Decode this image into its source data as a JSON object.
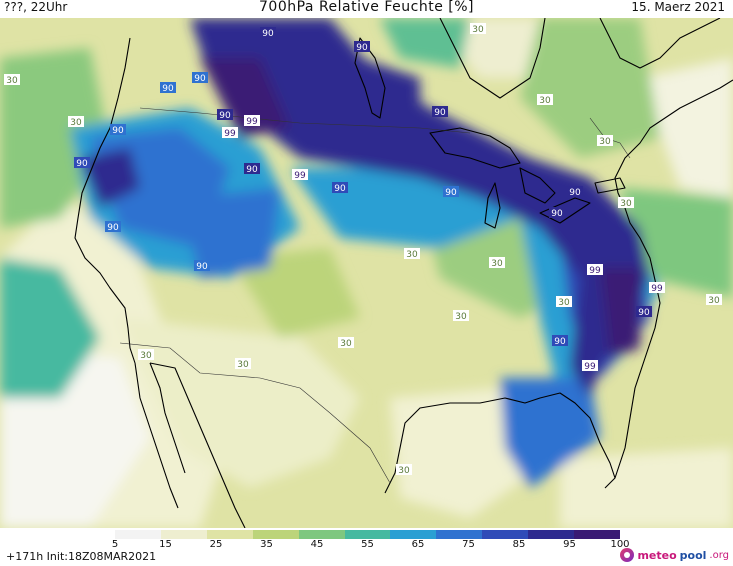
{
  "header": {
    "left": "???, 22Uhr",
    "title": "700hPa Relative Feuchte [%]",
    "date": "15. Maerz 2021"
  },
  "colors": {
    "c5": "#f2f2f2",
    "c15": "#f1f1d2",
    "c25": "#dfe3a5",
    "c35": "#bcd47a",
    "c45": "#7ec77f",
    "c55": "#46b9a0",
    "c65": "#2a9fd3",
    "c75": "#2f72d0",
    "c85": "#2f4bb8",
    "c95": "#2e2a8f",
    "c100": "#3a1a74",
    "lines": "#000000"
  },
  "legend": {
    "ticks": [
      "5",
      "15",
      "25",
      "35",
      "45",
      "55",
      "65",
      "75",
      "85",
      "95",
      "100"
    ],
    "colors": [
      "#f3f3f3",
      "#eeeed0",
      "#dfe3a5",
      "#bcd47a",
      "#7ec77f",
      "#46b9a0",
      "#2a9fd3",
      "#2f72d0",
      "#2f4bb8",
      "#2e2a8f",
      "#3a1a74"
    ]
  },
  "contour_labels": [
    "90",
    "90",
    "90",
    "90",
    "90",
    "99",
    "99",
    "99",
    "99",
    "99",
    "99",
    "90",
    "90",
    "90",
    "90",
    "90",
    "90",
    "90",
    "90",
    "90",
    "90",
    "90",
    "90",
    "30",
    "30",
    "30",
    "30",
    "30",
    "30",
    "30",
    "30",
    "30",
    "30",
    "30",
    "30",
    "30",
    "30",
    "30"
  ],
  "footer": {
    "run": "+171h  Init:18Z08MAR2021",
    "brand_part1": "meteo",
    "brand_part2": "pool",
    "brand_part3": ".org"
  }
}
